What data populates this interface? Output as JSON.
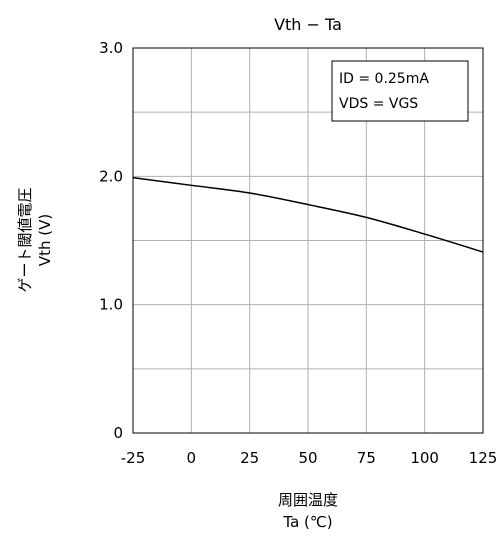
{
  "chart_data": {
    "type": "line",
    "title": "Vth − Ta",
    "xlabel": {
      "line1": "周囲温度",
      "line2": "Ta (℃)"
    },
    "ylabel": {
      "line1": "ゲート閾値電圧",
      "line2": "Vth (V)"
    },
    "xlim": [
      -25,
      125
    ],
    "ylim": [
      0,
      3.0
    ],
    "x_ticks": [
      -25,
      0,
      25,
      50,
      75,
      100,
      125
    ],
    "x_tick_labels": [
      "-25",
      "0",
      "25",
      "50",
      "75",
      "100",
      "125"
    ],
    "y_ticks": [
      0,
      1.0,
      2.0,
      3.0
    ],
    "y_tick_labels": [
      "0",
      "1.0",
      "2.0",
      "3.0"
    ],
    "y_grid_minor": [
      0.5,
      1.5,
      2.5
    ],
    "grid": true,
    "annotation": [
      "ID = 0.25mA",
      "VDS = VGS"
    ],
    "legend_position": "top-right",
    "series": [
      {
        "x": [
          -25,
          0,
          25,
          50,
          75,
          100,
          125
        ],
        "values": [
          1.99,
          1.93,
          1.87,
          1.78,
          1.68,
          1.55,
          1.41
        ]
      }
    ],
    "line_color": "#000000",
    "grid_color": "#b0b0b0"
  }
}
